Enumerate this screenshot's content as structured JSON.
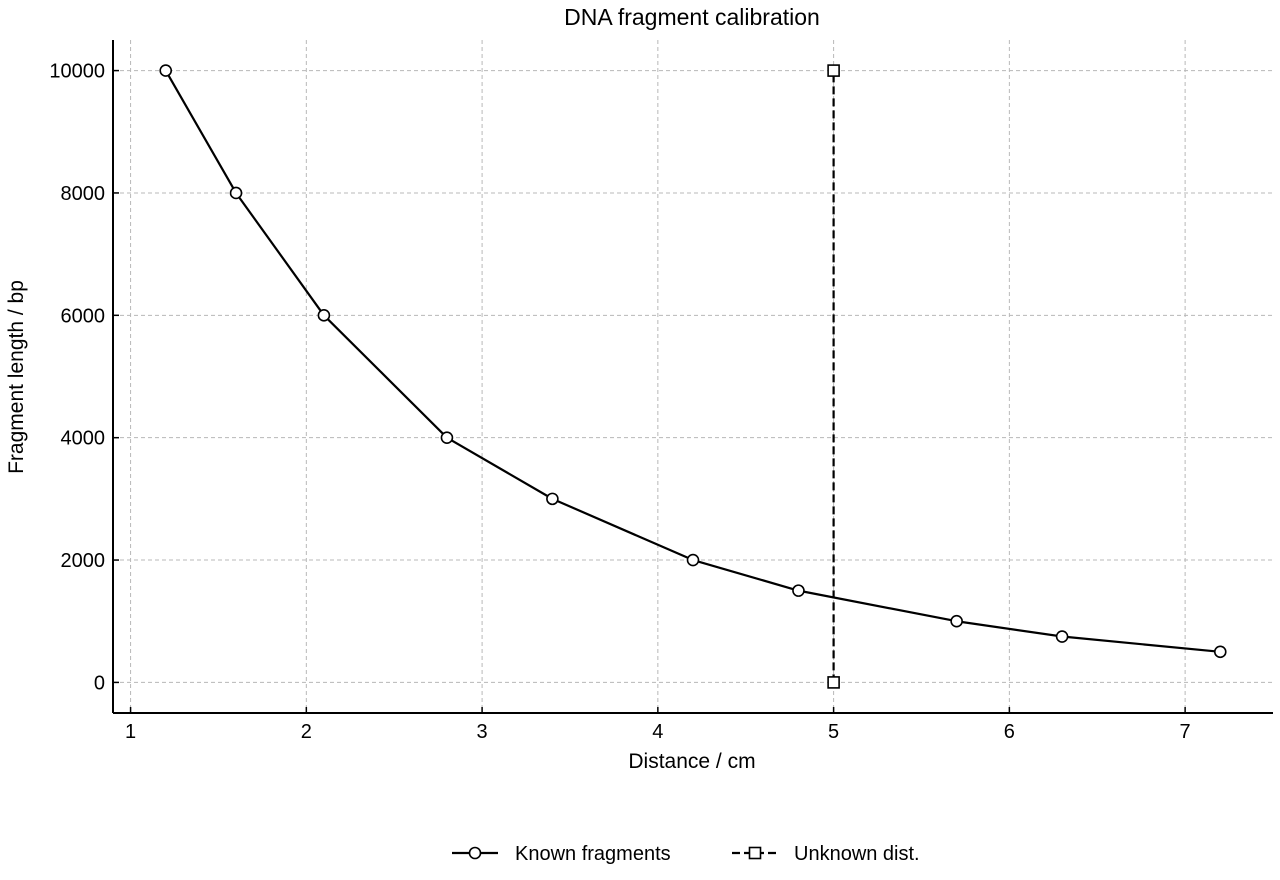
{
  "chart_data": {
    "type": "line",
    "title": "DNA fragment calibration",
    "xlabel": "Distance / cm",
    "ylabel": "Fragment length / bp",
    "xlim": [
      0.9,
      7.5
    ],
    "ylim": [
      -500,
      10500
    ],
    "xticks": [
      1,
      2,
      3,
      4,
      5,
      6,
      7
    ],
    "yticks": [
      0,
      2000,
      4000,
      6000,
      8000,
      10000
    ],
    "grid": true,
    "legend_position": "bottom-center",
    "series": [
      {
        "name": "Known fragments",
        "style": "solid",
        "marker": "circle",
        "color": "#000000",
        "x": [
          1.2,
          1.6,
          2.1,
          2.8,
          3.4,
          4.2,
          4.8,
          5.7,
          6.3,
          7.2
        ],
        "y": [
          10000,
          8000,
          6000,
          4000,
          3000,
          2000,
          1500,
          1000,
          750,
          500
        ]
      },
      {
        "name": "Unknown dist.",
        "style": "dashed",
        "marker": "square",
        "color": "#000000",
        "x": [
          5.0,
          5.0
        ],
        "y": [
          0,
          10000
        ]
      }
    ]
  }
}
